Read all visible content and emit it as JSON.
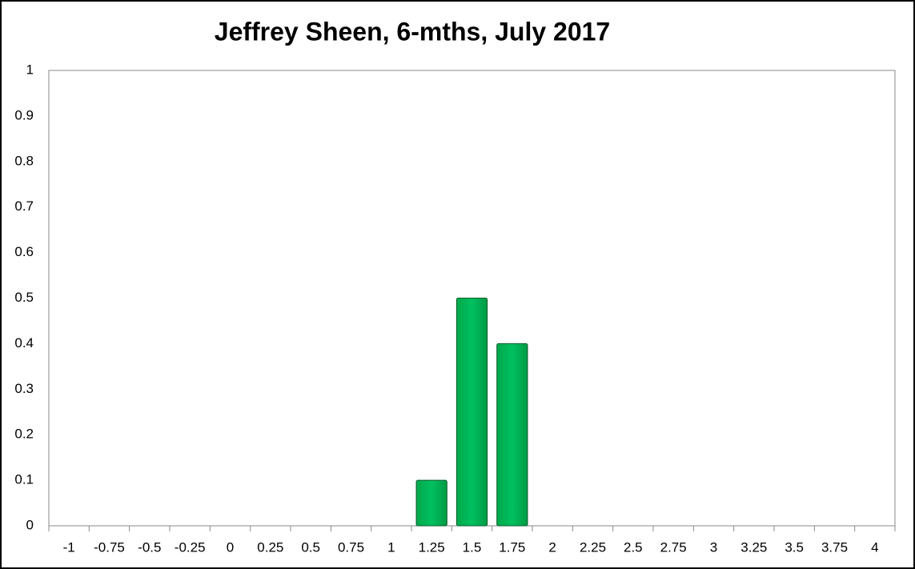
{
  "chart_data": {
    "type": "bar",
    "title": "Jeffrey Sheen, 6-mths, July 2017",
    "categories": [
      "-1",
      "-0.75",
      "-0.5",
      "-0.25",
      "0",
      "0.25",
      "0.5",
      "0.75",
      "1",
      "1.25",
      "1.5",
      "1.75",
      "2",
      "2.25",
      "2.5",
      "2.75",
      "3",
      "3.25",
      "3.5",
      "3.75",
      "4"
    ],
    "values": [
      0,
      0,
      0,
      0,
      0,
      0,
      0,
      0,
      0,
      0.1,
      0.5,
      0.4,
      0,
      0,
      0,
      0,
      0,
      0,
      0,
      0,
      0
    ],
    "color": "#00b050",
    "ylim": [
      0,
      1
    ],
    "yticks": [
      0,
      0.1,
      0.2,
      0.3,
      0.4,
      0.5,
      0.6,
      0.7,
      0.8,
      0.9,
      1
    ],
    "grid": false
  }
}
